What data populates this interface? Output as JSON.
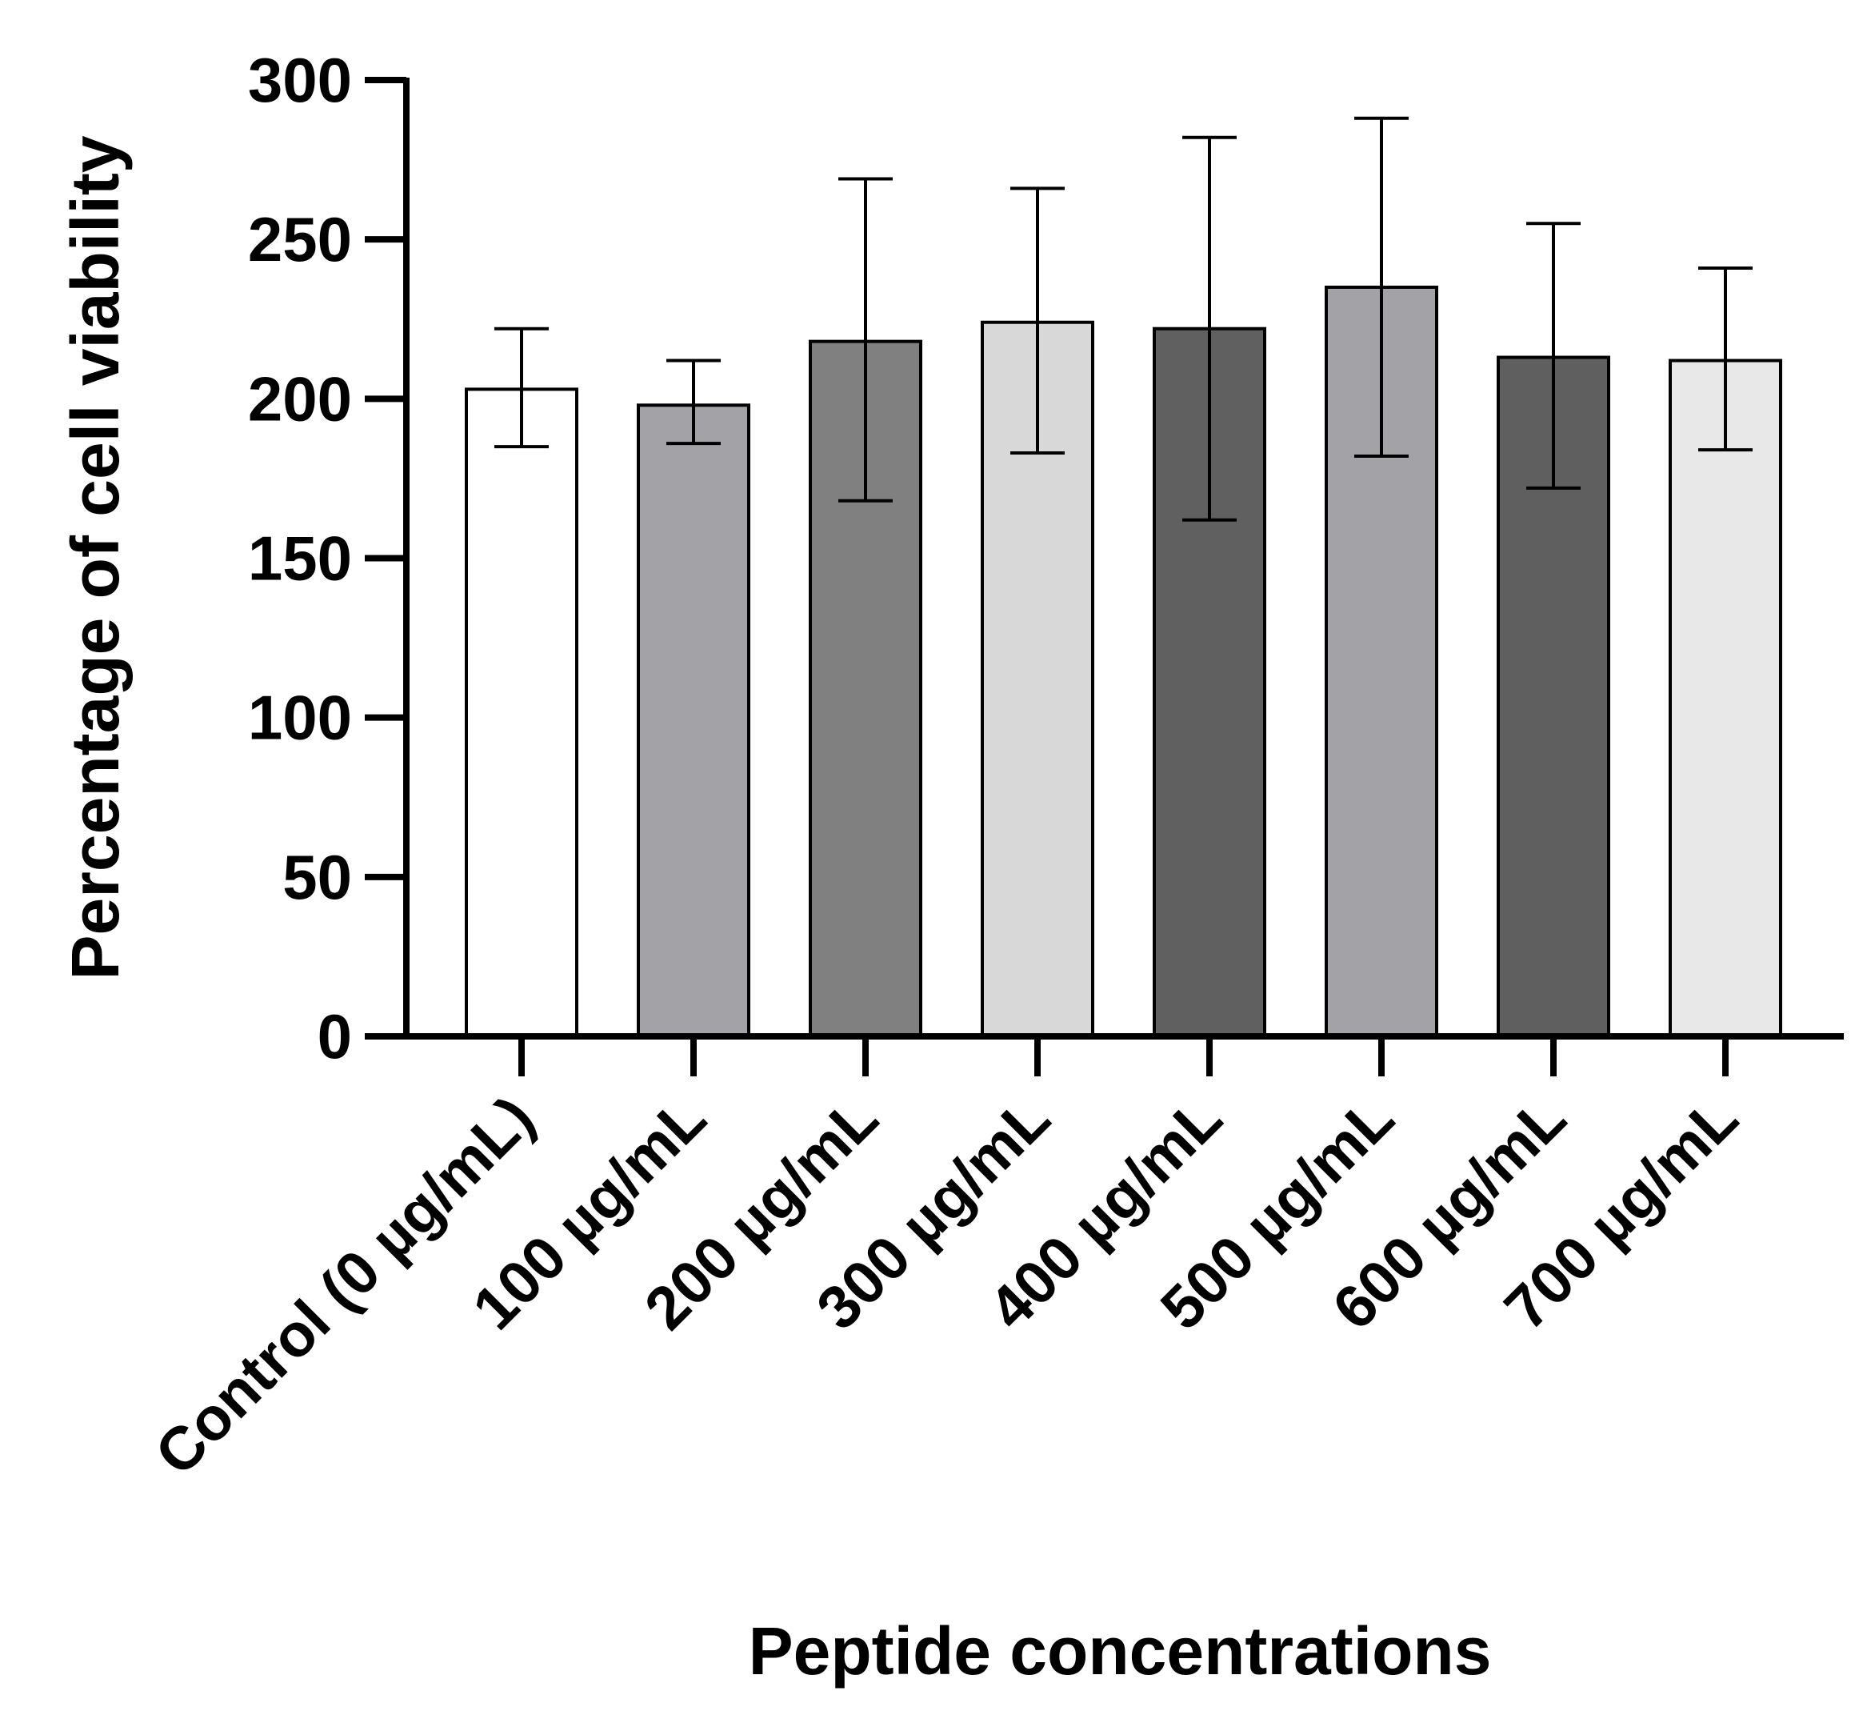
{
  "chart_data": {
    "type": "bar",
    "title": "",
    "xlabel": "Peptide concentrations",
    "ylabel": "Percentage of cell viability",
    "ylim": [
      0,
      300
    ],
    "yticks": [
      0,
      50,
      100,
      150,
      200,
      250,
      300
    ],
    "ytick_labels": [
      "0",
      "50",
      "100",
      "150",
      "200",
      "250",
      "300"
    ],
    "categories": [
      "Control (0 µg/mL)",
      "100 µg/mL",
      "200 µg/mL",
      "300 µg/mL",
      "400 µg/mL",
      "500 µg/mL",
      "600 µg/mL",
      "700 µg/mL"
    ],
    "values": [
      203,
      198,
      218,
      224,
      222,
      235,
      213,
      212
    ],
    "error_low": [
      185,
      186,
      168,
      183,
      162,
      182,
      172,
      184
    ],
    "error_high": [
      222,
      212,
      269,
      266,
      282,
      288,
      255,
      241
    ],
    "colors": [
      "#ffffff",
      "#a3a2a7",
      "#808080",
      "#d8d8d8",
      "#606060",
      "#a3a2a7",
      "#5f5f5f",
      "#e8e8e8"
    ],
    "grid": false,
    "legend": "none"
  }
}
